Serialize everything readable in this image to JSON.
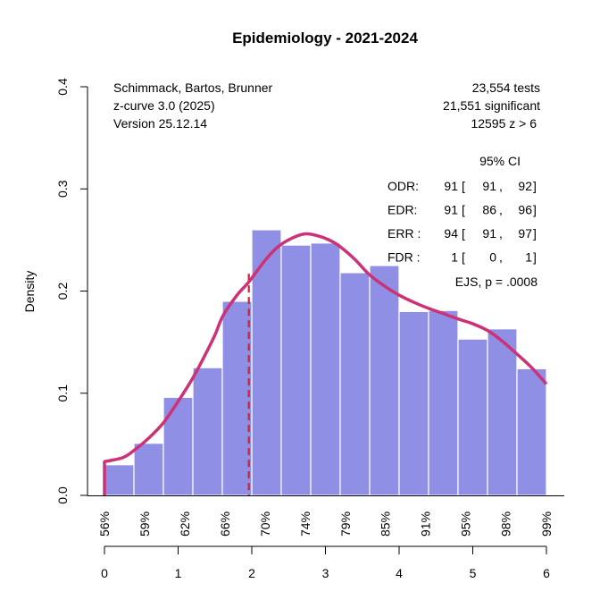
{
  "chart_data": {
    "type": "bar",
    "title": "Epidemiology - 2021-2024",
    "xlabel": "",
    "ylabel": "Density",
    "xlim": [
      0,
      6
    ],
    "ylim": [
      0,
      0.4
    ],
    "grid": false,
    "x_ticks": [
      0,
      1,
      2,
      3,
      4,
      5,
      6
    ],
    "x_tick_labels": [
      "0",
      "1",
      "2",
      "3",
      "4",
      "5",
      "6"
    ],
    "y_ticks": [
      0.0,
      0.1,
      0.2,
      0.3,
      0.4
    ],
    "y_tick_labels": [
      "0.0",
      "0.1",
      "0.2",
      "0.3",
      "0.4"
    ],
    "power_axis": {
      "positions": [
        0,
        0.545,
        1.09,
        1.635,
        2.18,
        2.725,
        3.27,
        3.815,
        4.36,
        4.905,
        5.45,
        6.0
      ],
      "labels": [
        "56%",
        "59%",
        "62%",
        "66%",
        "70%",
        "74%",
        "79%",
        "85%",
        "91%",
        "95%",
        "98%",
        "99%"
      ]
    },
    "histogram": {
      "bin_edges": [
        0,
        0.4,
        0.8,
        1.2,
        1.6,
        2.0,
        2.4,
        2.8,
        3.2,
        3.6,
        4.0,
        4.4,
        4.8,
        5.2,
        5.6,
        6.0
      ],
      "densities": [
        0.03,
        0.051,
        0.096,
        0.125,
        0.19,
        0.26,
        0.245,
        0.247,
        0.218,
        0.225,
        0.18,
        0.181,
        0.153,
        0.163,
        0.124
      ],
      "color": "#8f8fe6"
    },
    "curve": {
      "name": "z-curve fit",
      "color": "#cc3377",
      "x": [
        0,
        0.25,
        0.4,
        0.6,
        0.8,
        1.0,
        1.2,
        1.37,
        1.5,
        1.61,
        1.8,
        1.96,
        2.18,
        2.35,
        2.54,
        2.73,
        2.9,
        3.05,
        3.19,
        3.4,
        3.59,
        3.8,
        4.0,
        4.2,
        4.4,
        4.6,
        4.8,
        5.0,
        5.21,
        5.4,
        5.61,
        5.8,
        6.0
      ],
      "y": [
        0.033,
        0.037,
        0.044,
        0.056,
        0.071,
        0.092,
        0.115,
        0.138,
        0.157,
        0.176,
        0.196,
        0.209,
        0.23,
        0.243,
        0.2516,
        0.256,
        0.254,
        0.25,
        0.244,
        0.231,
        0.2165,
        0.205,
        0.196,
        0.189,
        0.183,
        0.178,
        0.1727,
        0.168,
        0.161,
        0.151,
        0.1377,
        0.125,
        0.109
      ]
    },
    "critical_line": {
      "x": 1.96,
      "y_top": 0.217,
      "color": "#cc2233",
      "style": "dashed"
    }
  },
  "annotations": {
    "left": [
      "Schimmack, Bartos, Brunner",
      "z-curve 3.0 (2025)",
      "Version 25.12.14"
    ],
    "right": [
      "23,554 tests",
      "21,551 significant",
      "12595 z > 6"
    ],
    "ci_header": "95% CI",
    "ci_rows": [
      {
        "label": "ODR:",
        "est": "91",
        "lo": "91",
        "hi": "92"
      },
      {
        "label": "EDR:",
        "est": "91",
        "lo": "86",
        "hi": "96"
      },
      {
        "label": "ERR :",
        "est": "94",
        "lo": "91",
        "hi": "97"
      },
      {
        "label": "FDR :",
        "est": "1",
        "lo": "0",
        "hi": "1"
      }
    ],
    "ejs": "EJS, p = .0008"
  }
}
